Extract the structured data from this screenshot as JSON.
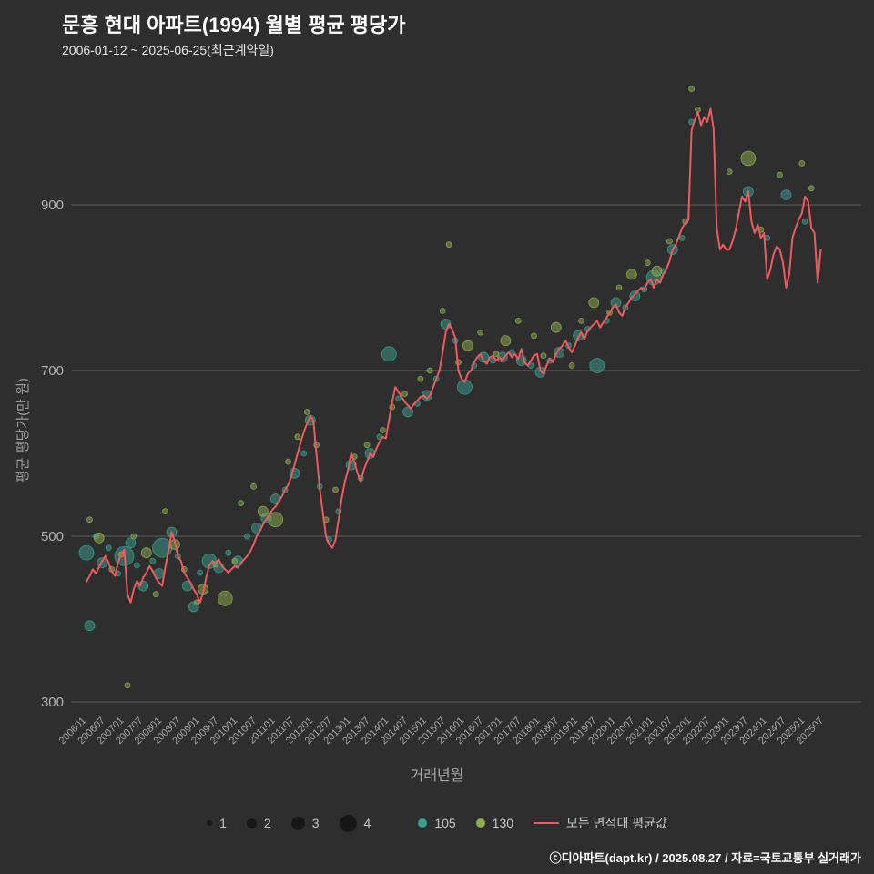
{
  "header": {
    "title": "문흥 현대 아파트(1994) 월별 평균 평당가",
    "subtitle": "2006-01-12 ~ 2025-06-25(최근계약일)"
  },
  "footer": {
    "credit": "ⓒ디아파트(dapt.kr) / 2025.08.27 / 자료=국토교통부 실거래가"
  },
  "colors": {
    "background": "#2e2e2e",
    "line": "#ee5a5e",
    "series_105": "#3aa08f",
    "series_130": "#8fae4f",
    "grid": "#9a9a9a",
    "tick_text": "#a6a6a6"
  },
  "legend": {
    "size_labels": [
      "1",
      "2",
      "3",
      "4"
    ],
    "series": [
      {
        "label": "105",
        "color": "#3aa08f"
      },
      {
        "label": "130",
        "color": "#8fae4f"
      },
      {
        "label": "모든 면적대 평균값",
        "color": "#ee5a5e"
      }
    ]
  },
  "chart_data": {
    "type": "scatter",
    "title": "문흥 현대 아파트(1994) 월별 평균 평당가",
    "subtitle": "2006-01-12 ~ 2025-06-25(최근계약일)",
    "xlabel": "거래년월",
    "ylabel": "평균 평당가(만 원)",
    "ylim": [
      260,
      1060
    ],
    "yticks": [
      300,
      500,
      700,
      900
    ],
    "grid": "horizontal",
    "legend_position": "bottom",
    "xticks": [
      "200601",
      "200607",
      "200701",
      "200707",
      "200801",
      "200807",
      "200901",
      "200907",
      "201001",
      "201007",
      "201101",
      "201107",
      "201201",
      "201207",
      "201301",
      "201307",
      "201401",
      "201407",
      "201501",
      "201507",
      "201601",
      "201607",
      "201701",
      "201707",
      "201801",
      "201807",
      "201901",
      "201907",
      "202001",
      "202007",
      "202101",
      "202107",
      "202201",
      "202207",
      "202301",
      "202307",
      "202401",
      "202407",
      "202501",
      "202507"
    ],
    "size_legend": [
      1,
      2,
      3,
      4
    ],
    "line_series": {
      "name": "모든 면적대 평균값",
      "color": "#ee5a5e",
      "start": "200601",
      "monthly_values": [
        445,
        452,
        460,
        455,
        463,
        470,
        476,
        468,
        458,
        452,
        468,
        478,
        484,
        430,
        420,
        436,
        446,
        440,
        450,
        456,
        464,
        458,
        450,
        444,
        440,
        462,
        482,
        505,
        494,
        476,
        470,
        456,
        450,
        444,
        436,
        430,
        420,
        432,
        450,
        465,
        470,
        468,
        472,
        464,
        460,
        456,
        460,
        464,
        462,
        468,
        472,
        476,
        482,
        490,
        500,
        506,
        514,
        520,
        526,
        532,
        536,
        542,
        548,
        556,
        562,
        572,
        586,
        600,
        614,
        626,
        636,
        645,
        640,
        598,
        558,
        528,
        500,
        490,
        486,
        496,
        520,
        546,
        566,
        580,
        600,
        590,
        576,
        566,
        580,
        590,
        600,
        596,
        606,
        614,
        620,
        618,
        640,
        662,
        680,
        674,
        668,
        662,
        658,
        654,
        660,
        664,
        668,
        670,
        666,
        670,
        680,
        690,
        700,
        722,
        746,
        756,
        750,
        740,
        700,
        690,
        686,
        696,
        700,
        710,
        716,
        720,
        712,
        708,
        716,
        718,
        712,
        716,
        712,
        718,
        722,
        716,
        720,
        714,
        726,
        710,
        706,
        712,
        718,
        720,
        700,
        696,
        706,
        714,
        710,
        720,
        726,
        730,
        736,
        728,
        722,
        730,
        740,
        746,
        738,
        748,
        752,
        756,
        760,
        752,
        758,
        764,
        770,
        776,
        780,
        770,
        766,
        776,
        782,
        788,
        792,
        796,
        800,
        798,
        806,
        810,
        800,
        810,
        806,
        816,
        822,
        832,
        846,
        852,
        862,
        872,
        878,
        882,
        990,
        1002,
        1012,
        996,
        1006,
        1000,
        1016,
        992,
        872,
        846,
        852,
        846,
        846,
        856,
        870,
        890,
        910,
        904,
        916,
        880,
        866,
        876,
        860,
        866,
        810,
        822,
        840,
        850,
        846,
        830,
        800,
        816,
        860,
        872,
        882,
        890,
        910,
        904,
        872,
        866,
        806,
        846
      ]
    },
    "bubble_series": [
      {
        "name": "105",
        "color": "#3aa08f",
        "points": [
          [
            "200601",
            480,
            3
          ],
          [
            "200602",
            392,
            2
          ],
          [
            "200604",
            500,
            1
          ],
          [
            "200606",
            468,
            2
          ],
          [
            "200608",
            486,
            1
          ],
          [
            "200611",
            455,
            1
          ],
          [
            "200701",
            476,
            4
          ],
          [
            "200703",
            492,
            2
          ],
          [
            "200705",
            465,
            1
          ],
          [
            "200707",
            440,
            2
          ],
          [
            "200710",
            470,
            1
          ],
          [
            "200712",
            455,
            2
          ],
          [
            "200801",
            486,
            4
          ],
          [
            "200804",
            505,
            2
          ],
          [
            "200806",
            476,
            1
          ],
          [
            "200809",
            440,
            2
          ],
          [
            "200811",
            415,
            2
          ],
          [
            "200901",
            456,
            1
          ],
          [
            "200904",
            470,
            3
          ],
          [
            "200907",
            462,
            2
          ],
          [
            "200910",
            480,
            1
          ],
          [
            "201001",
            470,
            2
          ],
          [
            "201004",
            500,
            1
          ],
          [
            "201007",
            510,
            2
          ],
          [
            "201010",
            522,
            2
          ],
          [
            "201101",
            545,
            2
          ],
          [
            "201104",
            556,
            1
          ],
          [
            "201107",
            576,
            2
          ],
          [
            "201110",
            600,
            1
          ],
          [
            "201112",
            640,
            2
          ],
          [
            "201203",
            560,
            1
          ],
          [
            "201206",
            496,
            1
          ],
          [
            "201209",
            530,
            1
          ],
          [
            "201301",
            586,
            2
          ],
          [
            "201304",
            570,
            1
          ],
          [
            "201307",
            600,
            2
          ],
          [
            "201310",
            620,
            1
          ],
          [
            "201401",
            720,
            3
          ],
          [
            "201404",
            666,
            1
          ],
          [
            "201407",
            650,
            2
          ],
          [
            "201410",
            660,
            1
          ],
          [
            "201501",
            670,
            2
          ],
          [
            "201504",
            690,
            1
          ],
          [
            "201507",
            756,
            2
          ],
          [
            "201510",
            736,
            1
          ],
          [
            "201601",
            680,
            3
          ],
          [
            "201604",
            706,
            1
          ],
          [
            "201607",
            716,
            2
          ],
          [
            "201610",
            712,
            1
          ],
          [
            "201701",
            716,
            2
          ],
          [
            "201704",
            722,
            1
          ],
          [
            "201707",
            712,
            2
          ],
          [
            "201710",
            706,
            1
          ],
          [
            "201801",
            698,
            2
          ],
          [
            "201804",
            712,
            1
          ],
          [
            "201807",
            722,
            2
          ],
          [
            "201810",
            730,
            1
          ],
          [
            "201901",
            742,
            2
          ],
          [
            "201904",
            750,
            1
          ],
          [
            "201907",
            706,
            3
          ],
          [
            "201910",
            760,
            1
          ],
          [
            "202001",
            782,
            2
          ],
          [
            "202004",
            776,
            1
          ],
          [
            "202007",
            790,
            2
          ],
          [
            "202010",
            798,
            1
          ],
          [
            "202101",
            812,
            3
          ],
          [
            "202104",
            820,
            1
          ],
          [
            "202107",
            846,
            2
          ],
          [
            "202110",
            860,
            1
          ],
          [
            "202201",
            1000,
            1
          ],
          [
            "202307",
            916,
            2
          ],
          [
            "202401",
            860,
            1
          ],
          [
            "202407",
            912,
            2
          ],
          [
            "202501",
            880,
            1
          ]
        ]
      },
      {
        "name": "130",
        "color": "#8fae4f",
        "points": [
          [
            "200602",
            520,
            1
          ],
          [
            "200605",
            498,
            2
          ],
          [
            "200609",
            460,
            1
          ],
          [
            "200612",
            478,
            1
          ],
          [
            "200702",
            320,
            1
          ],
          [
            "200704",
            500,
            1
          ],
          [
            "200708",
            480,
            2
          ],
          [
            "200711",
            430,
            1
          ],
          [
            "200802",
            530,
            1
          ],
          [
            "200805",
            490,
            2
          ],
          [
            "200808",
            460,
            1
          ],
          [
            "200812",
            420,
            1
          ],
          [
            "200902",
            436,
            2
          ],
          [
            "200906",
            466,
            1
          ],
          [
            "200909",
            425,
            3
          ],
          [
            "200912",
            470,
            1
          ],
          [
            "201002",
            540,
            1
          ],
          [
            "201006",
            560,
            1
          ],
          [
            "201009",
            530,
            2
          ],
          [
            "201101",
            520,
            3
          ],
          [
            "201105",
            590,
            1
          ],
          [
            "201108",
            620,
            1
          ],
          [
            "201111",
            650,
            1
          ],
          [
            "201202",
            610,
            1
          ],
          [
            "201205",
            520,
            1
          ],
          [
            "201208",
            556,
            1
          ],
          [
            "201302",
            596,
            1
          ],
          [
            "201306",
            610,
            1
          ],
          [
            "201311",
            628,
            1
          ],
          [
            "201402",
            656,
            1
          ],
          [
            "201406",
            672,
            1
          ],
          [
            "201411",
            690,
            1
          ],
          [
            "201502",
            700,
            1
          ],
          [
            "201506",
            772,
            1
          ],
          [
            "201508",
            852,
            1
          ],
          [
            "201511",
            710,
            1
          ],
          [
            "201602",
            730,
            2
          ],
          [
            "201606",
            746,
            1
          ],
          [
            "201611",
            720,
            1
          ],
          [
            "201702",
            736,
            2
          ],
          [
            "201706",
            760,
            1
          ],
          [
            "201711",
            742,
            1
          ],
          [
            "201802",
            718,
            1
          ],
          [
            "201806",
            752,
            2
          ],
          [
            "201811",
            706,
            1
          ],
          [
            "201902",
            760,
            1
          ],
          [
            "201906",
            782,
            2
          ],
          [
            "201911",
            770,
            1
          ],
          [
            "202002",
            800,
            1
          ],
          [
            "202006",
            816,
            2
          ],
          [
            "202011",
            830,
            1
          ],
          [
            "202102",
            820,
            2
          ],
          [
            "202106",
            856,
            1
          ],
          [
            "202111",
            880,
            1
          ],
          [
            "202201",
            1040,
            1
          ],
          [
            "202203",
            1015,
            1
          ],
          [
            "202301",
            940,
            1
          ],
          [
            "202307",
            956,
            3
          ],
          [
            "202311",
            870,
            1
          ],
          [
            "202405",
            936,
            1
          ],
          [
            "202412",
            950,
            1
          ],
          [
            "202503",
            920,
            1
          ]
        ]
      }
    ]
  }
}
